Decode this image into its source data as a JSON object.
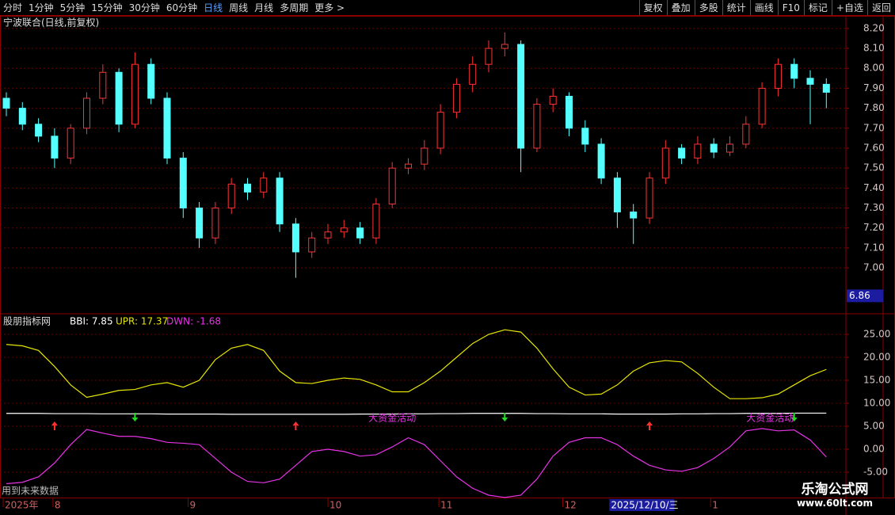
{
  "toolbar": {
    "left": [
      "分时",
      "1分钟",
      "5分钟",
      "15分钟",
      "30分钟",
      "60分钟",
      "日线",
      "周线",
      "月线",
      "多周期",
      "更多 >"
    ],
    "active": 6,
    "right": [
      "复权",
      "叠加",
      "多股",
      "统计",
      "画线",
      "F10",
      "标记",
      "+自选",
      "返回"
    ]
  },
  "chart_data": [
    {
      "type": "candlestick",
      "title": "宁波联合(日线,前复权)",
      "up_color": "#ff3232",
      "down_color": "#54ffff",
      "grid": true,
      "ylim": [
        6.774,
        8.263
      ],
      "yticks": [
        {
          "value": 7.0,
          "label": "7.00"
        },
        {
          "value": 7.1,
          "label": "7.10"
        },
        {
          "value": 7.2,
          "label": "7.20"
        },
        {
          "value": 7.3,
          "label": "7.30"
        },
        {
          "value": 7.4,
          "label": "7.40"
        },
        {
          "value": 7.5,
          "label": "7.50"
        },
        {
          "value": 7.6,
          "label": "7.60"
        },
        {
          "value": 7.7,
          "label": "7.70"
        },
        {
          "value": 7.8,
          "label": "7.80"
        },
        {
          "value": 7.9,
          "label": "7.90"
        },
        {
          "value": 8.0,
          "label": "8.00"
        },
        {
          "value": 8.1,
          "label": "8.10"
        },
        {
          "value": 8.2,
          "label": "8.20"
        }
      ],
      "cursor_y": {
        "value": 6.86,
        "label": "6.86"
      },
      "open": [
        7.85,
        7.8,
        7.72,
        7.66,
        7.55,
        7.7,
        7.85,
        7.98,
        7.72,
        8.02,
        7.85,
        7.55,
        7.3,
        7.15,
        7.3,
        7.42,
        7.38,
        7.45,
        7.22,
        7.08,
        7.15,
        7.18,
        7.2,
        7.15,
        7.32,
        7.5,
        7.52,
        7.6,
        7.78,
        7.92,
        8.02,
        8.1,
        8.12,
        7.6,
        7.82,
        7.86,
        7.7,
        7.62,
        7.45,
        7.28,
        7.25,
        7.45,
        7.6,
        7.55,
        7.62,
        7.58,
        7.62,
        7.72,
        7.9,
        8.02,
        7.95,
        7.92
      ],
      "high": [
        7.88,
        7.83,
        7.75,
        7.7,
        7.72,
        7.88,
        8.02,
        8.0,
        8.08,
        8.05,
        7.88,
        7.58,
        7.33,
        7.33,
        7.45,
        7.45,
        7.48,
        7.48,
        7.25,
        7.18,
        7.22,
        7.24,
        7.23,
        7.35,
        7.53,
        7.55,
        7.64,
        7.82,
        7.95,
        8.06,
        8.14,
        8.18,
        8.14,
        7.85,
        7.9,
        7.88,
        7.74,
        7.65,
        7.48,
        7.32,
        7.48,
        7.64,
        7.62,
        7.66,
        7.65,
        7.66,
        7.76,
        7.93,
        8.05,
        8.05,
        7.99,
        7.95
      ],
      "low": [
        7.76,
        7.69,
        7.63,
        7.5,
        7.52,
        7.67,
        7.82,
        7.68,
        7.7,
        7.82,
        7.52,
        7.25,
        7.1,
        7.12,
        7.27,
        7.34,
        7.35,
        7.18,
        6.95,
        7.05,
        7.12,
        7.15,
        7.12,
        7.12,
        7.3,
        7.47,
        7.49,
        7.57,
        7.75,
        7.88,
        7.98,
        8.06,
        7.48,
        7.58,
        7.78,
        7.66,
        7.58,
        7.42,
        7.2,
        7.12,
        7.22,
        7.42,
        7.52,
        7.52,
        7.55,
        7.56,
        7.6,
        7.7,
        7.86,
        7.9,
        7.72,
        7.8
      ],
      "close": [
        7.8,
        7.72,
        7.66,
        7.55,
        7.7,
        7.85,
        7.98,
        7.72,
        8.02,
        7.85,
        7.55,
        7.3,
        7.15,
        7.3,
        7.42,
        7.38,
        7.45,
        7.22,
        7.08,
        7.15,
        7.18,
        7.2,
        7.15,
        7.32,
        7.5,
        7.52,
        7.6,
        7.78,
        7.92,
        8.02,
        8.1,
        8.12,
        7.6,
        7.82,
        7.86,
        7.7,
        7.62,
        7.45,
        7.28,
        7.25,
        7.45,
        7.6,
        7.55,
        7.62,
        7.58,
        7.62,
        7.72,
        7.9,
        8.02,
        7.95,
        7.92,
        7.88
      ]
    },
    {
      "type": "line",
      "title": "股朋指标网",
      "grid": true,
      "ylim": [
        -10.52,
        29.31
      ],
      "yticks": [
        {
          "value": -5,
          "label": "-5.00"
        },
        {
          "value": 0,
          "label": "0.00"
        },
        {
          "value": 5,
          "label": "5.00"
        },
        {
          "value": 10,
          "label": "10.00"
        },
        {
          "value": 15,
          "label": "15.00"
        },
        {
          "value": 20,
          "label": "20.00"
        },
        {
          "value": 25,
          "label": "25.00"
        }
      ],
      "series": [
        {
          "label": "BBI: 7.85",
          "color": "#ffffff",
          "values": [
            7.8,
            7.8,
            7.8,
            7.75,
            7.75,
            7.75,
            7.7,
            7.7,
            7.7,
            7.7,
            7.65,
            7.65,
            7.65,
            7.65,
            7.6,
            7.6,
            7.6,
            7.6,
            7.6,
            7.6,
            7.6,
            7.6,
            7.65,
            7.65,
            7.65,
            7.7,
            7.7,
            7.75,
            7.75,
            7.8,
            7.8,
            7.8,
            7.8,
            7.75,
            7.75,
            7.7,
            7.7,
            7.7,
            7.65,
            7.65,
            7.65,
            7.65,
            7.7,
            7.7,
            7.75,
            7.75,
            7.8,
            7.8,
            7.8,
            7.85,
            7.85,
            7.85
          ]
        },
        {
          "label": "UPR: 17.37",
          "color": "#e6e600",
          "values": [
            22.8,
            22.5,
            21.5,
            18,
            14,
            11.3,
            12,
            12.8,
            13,
            14,
            14.5,
            13.5,
            15,
            19.5,
            22,
            22.8,
            21.5,
            17,
            14.5,
            14.3,
            15,
            15.5,
            15.2,
            14,
            12.5,
            12.5,
            14.5,
            17,
            20,
            23,
            25,
            26,
            25.5,
            22,
            17.5,
            13.5,
            11.8,
            12,
            14,
            17,
            18.8,
            19.3,
            19,
            16.5,
            13.5,
            11,
            11,
            11.2,
            12,
            14,
            16,
            17.37
          ]
        },
        {
          "label": "DWN: -1.68",
          "color": "#e633e6",
          "values": [
            -7.5,
            -7.2,
            -6,
            -3,
            1,
            4.3,
            3.5,
            2.8,
            2.8,
            2.3,
            1.5,
            1.3,
            1,
            -2,
            -5,
            -7,
            -7.3,
            -6.5,
            -3.5,
            -0.5,
            0,
            -0.5,
            -1.5,
            -1.2,
            0.5,
            2.5,
            1,
            -2.5,
            -6,
            -8.5,
            -10,
            -10.5,
            -10,
            -6.5,
            -1.5,
            1.5,
            2.5,
            2.5,
            1,
            -1.5,
            -3.5,
            -4.5,
            -4.8,
            -4,
            -2,
            0.5,
            4,
            4.5,
            4,
            4.2,
            2,
            -1.68
          ]
        }
      ],
      "buy_signals": [
        3,
        18,
        40
      ],
      "sell_signals": [
        8,
        31,
        49
      ],
      "annotations": [
        {
          "text": "大资金活动",
          "x": 24
        },
        {
          "text": "大资金活动",
          "x": 47.5
        }
      ],
      "note": "用到未来数据",
      "xticks": [
        {
          "value": 0,
          "label": "2025年"
        },
        {
          "value": 3.1,
          "label": "8"
        },
        {
          "value": 11.5,
          "label": "9"
        },
        {
          "value": 20.2,
          "label": "10"
        },
        {
          "value": 27.1,
          "label": "11"
        },
        {
          "value": 34.8,
          "label": "12"
        },
        {
          "value": 44,
          "label": "1"
        }
      ],
      "cursor_x": {
        "value": 37.8,
        "label": "2025/12/10/三"
      }
    }
  ],
  "watermark": {
    "name": "乐淘公式网",
    "url": "www.60lt.com"
  }
}
